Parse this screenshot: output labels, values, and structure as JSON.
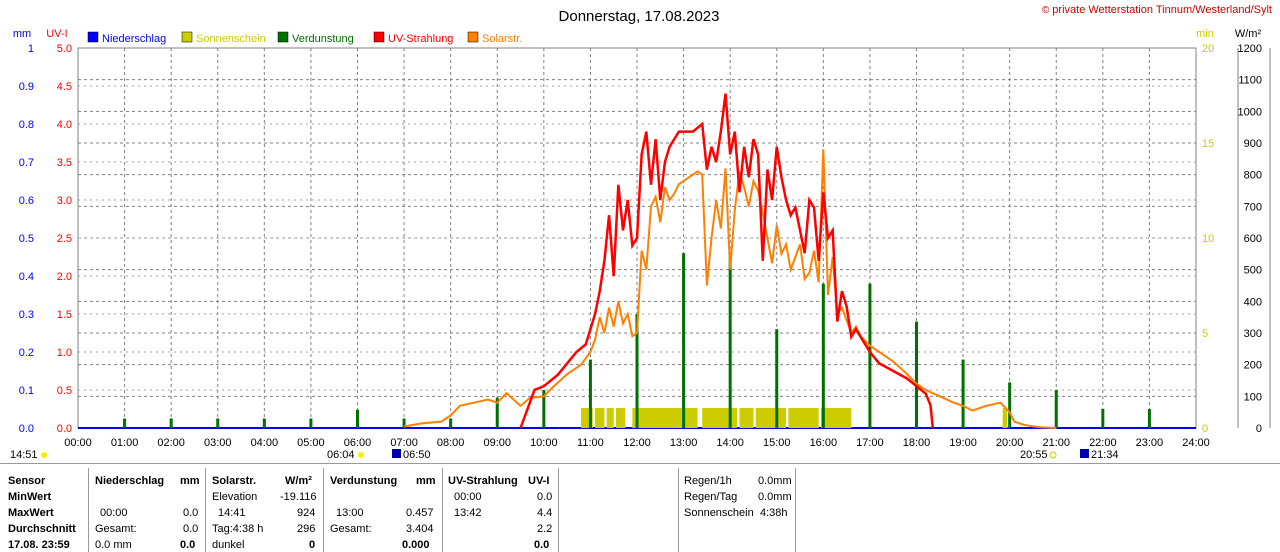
{
  "header": {
    "title": "Donnerstag, 17.08.2023",
    "credit": "private Wetterstation Tinnum/Westerland/Sylt",
    "credit_symbol": "©"
  },
  "colors": {
    "niederschlag": "#0000ff",
    "sonnenschein": "#cccc00",
    "verdunstung": "#007000",
    "uv": "#ff0000",
    "solar": "#ff8000",
    "grid": "#808080"
  },
  "chart_data": {
    "type": "line",
    "x_unit": "time of day (h)",
    "xlim": [
      0,
      24
    ],
    "x_ticks": [
      "00:00",
      "01:00",
      "02:00",
      "03:00",
      "04:00",
      "05:00",
      "06:00",
      "07:00",
      "08:00",
      "09:00",
      "10:00",
      "11:00",
      "12:00",
      "13:00",
      "14:00",
      "15:00",
      "16:00",
      "17:00",
      "18:00",
      "19:00",
      "20:00",
      "21:00",
      "22:00",
      "23:00",
      "24:00"
    ],
    "axes": {
      "mm": {
        "label": "mm",
        "ylim": [
          0,
          1.0
        ],
        "ticks": [
          "0.0",
          "0.1",
          "0.2",
          "0.3",
          "0.4",
          "0.5",
          "0.6",
          "0.7",
          "0.8",
          "0.9",
          "1"
        ]
      },
      "uvi": {
        "label": "UV-I",
        "ylim": [
          0,
          5.0
        ],
        "ticks": [
          "0.0",
          "0.5",
          "1.0",
          "1.5",
          "2.0",
          "2.5",
          "3.0",
          "3.5",
          "4.0",
          "4.5",
          "5.0"
        ]
      },
      "min": {
        "label": "min",
        "ylim": [
          0,
          20
        ],
        "ticks": [
          "0",
          "5",
          "10",
          "15",
          "20"
        ]
      },
      "wm2": {
        "label": "W/m²",
        "ylim": [
          0,
          1200
        ],
        "ticks": [
          "0",
          "100",
          "200",
          "300",
          "400",
          "500",
          "600",
          "700",
          "800",
          "900",
          "1000",
          "1100",
          "1200"
        ]
      }
    },
    "legend": [
      "Niederschlag",
      "Sonnenschein",
      "Verdunstung",
      "UV-Strahlung",
      "Solarstr."
    ],
    "grid": true,
    "series": [
      {
        "name": "UV-Strahlung",
        "axis": "uvi",
        "x": [
          9.5,
          9.8,
          10.0,
          10.3,
          10.5,
          10.7,
          10.9,
          11.0,
          11.1,
          11.2,
          11.3,
          11.4,
          11.5,
          11.6,
          11.7,
          11.8,
          11.9,
          12.0,
          12.1,
          12.2,
          12.3,
          12.4,
          12.5,
          12.6,
          12.7,
          12.8,
          12.9,
          13.0,
          13.2,
          13.4,
          13.5,
          13.6,
          13.7,
          13.8,
          13.9,
          14.0,
          14.1,
          14.2,
          14.3,
          14.4,
          14.5,
          14.6,
          14.7,
          14.8,
          14.9,
          15.0,
          15.1,
          15.2,
          15.3,
          15.4,
          15.5,
          15.6,
          15.7,
          15.8,
          15.9,
          16.0,
          16.1,
          16.2,
          16.3,
          16.4,
          16.5,
          16.6,
          16.7,
          16.8,
          17.0,
          17.2,
          17.5,
          17.8,
          18.0,
          18.2,
          18.3,
          18.35
        ],
        "y": [
          0.0,
          0.5,
          0.55,
          0.7,
          0.85,
          1.0,
          1.1,
          1.3,
          1.5,
          1.8,
          2.2,
          2.8,
          2.0,
          3.2,
          2.6,
          3.0,
          2.4,
          2.5,
          3.6,
          3.9,
          3.2,
          3.8,
          3.0,
          3.5,
          3.7,
          3.8,
          3.9,
          3.9,
          3.9,
          4.0,
          3.4,
          3.7,
          3.5,
          3.9,
          4.4,
          3.6,
          3.9,
          3.1,
          3.7,
          3.3,
          3.8,
          3.6,
          2.2,
          3.4,
          3.0,
          3.7,
          3.3,
          3.0,
          2.8,
          2.9,
          2.6,
          2.3,
          3.0,
          2.9,
          2.2,
          3.1,
          2.5,
          2.6,
          1.4,
          1.8,
          1.6,
          1.2,
          1.3,
          1.2,
          1.0,
          0.85,
          0.75,
          0.65,
          0.55,
          0.45,
          0.3,
          0.0
        ]
      },
      {
        "name": "Solarstr.",
        "axis": "wm2",
        "x": [
          7.0,
          7.4,
          7.8,
          8.0,
          8.2,
          8.5,
          8.8,
          9.0,
          9.2,
          9.5,
          9.7,
          10.0,
          10.2,
          10.5,
          10.8,
          11.0,
          11.1,
          11.2,
          11.3,
          11.4,
          11.5,
          11.6,
          11.7,
          11.8,
          11.9,
          12.0,
          12.1,
          12.2,
          12.3,
          12.4,
          12.5,
          12.6,
          12.7,
          12.8,
          12.9,
          13.0,
          13.1,
          13.2,
          13.3,
          13.4,
          13.5,
          13.6,
          13.7,
          13.8,
          13.9,
          14.0,
          14.1,
          14.2,
          14.3,
          14.4,
          14.5,
          14.6,
          14.7,
          14.8,
          14.9,
          15.0,
          15.1,
          15.2,
          15.3,
          15.4,
          15.5,
          15.6,
          15.7,
          15.8,
          15.9,
          16.0,
          16.1,
          16.2,
          16.3,
          16.4,
          16.5,
          16.6,
          16.7,
          16.8,
          17.0,
          17.2,
          17.5,
          17.8,
          18.0,
          18.2,
          18.5,
          18.8,
          19.0,
          19.2,
          19.5,
          19.8,
          20.0,
          20.1,
          20.3,
          20.5,
          20.7,
          21.0
        ],
        "y": [
          5,
          15,
          20,
          40,
          70,
          80,
          90,
          80,
          110,
          70,
          95,
          100,
          130,
          170,
          200,
          240,
          280,
          350,
          300,
          380,
          320,
          400,
          330,
          360,
          290,
          300,
          560,
          500,
          700,
          730,
          650,
          760,
          720,
          740,
          770,
          780,
          790,
          800,
          810,
          800,
          450,
          600,
          720,
          630,
          820,
          500,
          690,
          810,
          760,
          700,
          780,
          750,
          680,
          600,
          520,
          640,
          550,
          580,
          500,
          540,
          580,
          470,
          490,
          560,
          460,
          880,
          420,
          540,
          360,
          380,
          340,
          300,
          320,
          290,
          260,
          240,
          210,
          170,
          140,
          120,
          100,
          80,
          70,
          55,
          70,
          80,
          50,
          20,
          10,
          5,
          2,
          0
        ]
      }
    ],
    "bars": [
      {
        "name": "Verdunstung",
        "axis": "mm",
        "x": [
          1,
          2,
          3,
          4,
          5,
          6,
          7,
          8,
          9,
          10,
          11,
          12,
          13,
          14,
          15,
          16,
          17,
          18,
          19,
          20,
          21,
          22,
          23
        ],
        "y": [
          0.025,
          0.025,
          0.025,
          0.025,
          0.025,
          0.048,
          0.025,
          0.025,
          0.08,
          0.1,
          0.18,
          0.3,
          0.46,
          0.45,
          0.26,
          0.38,
          0.38,
          0.28,
          0.18,
          0.12,
          0.1,
          0.05,
          0.05
        ]
      },
      {
        "name": "Sonnenschein",
        "axis": "min",
        "intervals": [
          [
            10.8,
            11.05
          ],
          [
            11.1,
            11.3
          ],
          [
            11.35,
            11.5
          ],
          [
            11.55,
            11.75
          ],
          [
            11.9,
            13.3
          ],
          [
            13.4,
            14.15
          ],
          [
            14.2,
            14.5
          ],
          [
            14.55,
            15.2
          ],
          [
            15.25,
            15.9
          ],
          [
            15.95,
            16.6
          ],
          [
            19.85,
            19.95
          ]
        ],
        "y": 10
      }
    ]
  },
  "markers": {
    "left_time": "14:51",
    "sunrise": "06:04",
    "moonrise": "06:50",
    "sunset": "20:55",
    "moonset": "21:34"
  },
  "stats": {
    "sensor": {
      "label": "Sensor",
      "min": "MinWert",
      "max": "MaxWert",
      "avg": "Durchschnitt",
      "last": "17.08. 23:59"
    },
    "niederschlag": {
      "label": "Niederschlag",
      "unit": "mm",
      "max_time": "00:00",
      "max_val": "0.0",
      "avg_label": "Gesamt:",
      "avg_val": "0.0",
      "last_time": "0.0 mm",
      "last_val": "0.0"
    },
    "solar": {
      "label": "Solarstr.",
      "unit": "W/m²",
      "min_label": "Elevation",
      "min_val": "-19.116",
      "max_time": "14:41",
      "max_val": "924",
      "avg_label": "Tag:4:38 h",
      "avg_val": "296",
      "last_label": "dunkel",
      "last_val": "0"
    },
    "verdunstung": {
      "label": "Verdunstung",
      "unit": "mm",
      "max_time": "13:00",
      "max_val": "0.457",
      "avg_label": "Gesamt:",
      "avg_val": "3.404",
      "last_val": "0.000"
    },
    "uv": {
      "label": "UV-Strahlung",
      "unit": "UV-I",
      "min_time": "00:00",
      "min_val": "0.0",
      "max_time": "13:42",
      "max_val": "4.4",
      "avg_val": "2.2",
      "last_val": "0.0"
    },
    "extra": {
      "regen1h_label": "Regen/1h",
      "regen1h_val": "0.0mm",
      "regentag_label": "Regen/Tag",
      "regentag_val": "0.0mm",
      "sonne_label": "Sonnenschein",
      "sonne_val": "4:38h"
    }
  }
}
